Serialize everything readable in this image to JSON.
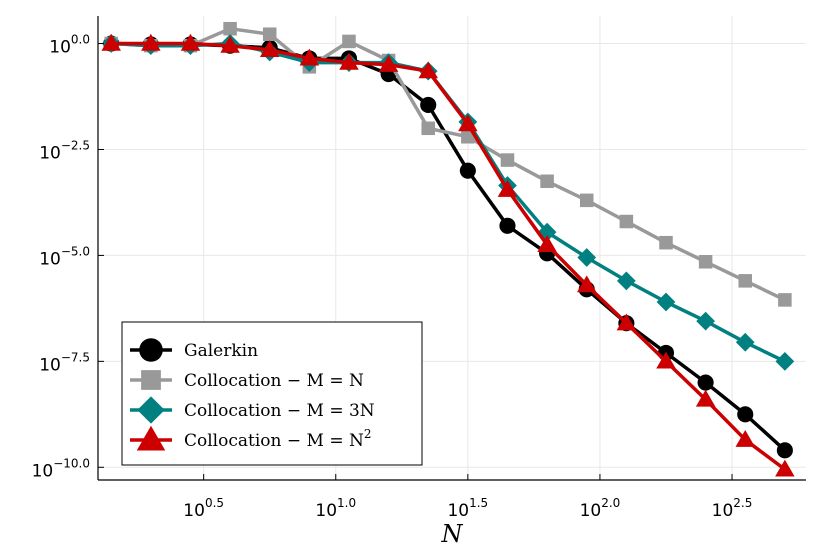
{
  "chart_data": {
    "type": "line",
    "x_scale": "log10",
    "y_scale": "log10",
    "xlabel": "N",
    "ylabel": "",
    "xlim_log10": [
      0.1,
      2.78
    ],
    "ylim_log10": [
      -10.3,
      0.65
    ],
    "x_ticks": [
      {
        "log": 0.5,
        "base": "10",
        "exp": "0.5"
      },
      {
        "log": 1.0,
        "base": "10",
        "exp": "1.0"
      },
      {
        "log": 1.5,
        "base": "10",
        "exp": "1.5"
      },
      {
        "log": 2.0,
        "base": "10",
        "exp": "2.0"
      },
      {
        "log": 2.5,
        "base": "10",
        "exp": "2.5"
      }
    ],
    "y_ticks": [
      {
        "log": 0.0,
        "base": "10",
        "exp": "0.0"
      },
      {
        "log": -2.5,
        "base": "10",
        "exp": "−2.5"
      },
      {
        "log": -5.0,
        "base": "10",
        "exp": "−5.0"
      },
      {
        "log": -7.5,
        "base": "10",
        "exp": "−7.5"
      },
      {
        "log": -10.0,
        "base": "10",
        "exp": "−10.0"
      }
    ],
    "grid": true,
    "legend_position": "bottom-left",
    "x_log10": [
      0.15,
      0.3,
      0.45,
      0.6,
      0.75,
      0.9,
      1.05,
      1.2,
      1.35,
      1.5,
      1.65,
      1.8,
      1.95,
      2.1,
      2.25,
      2.4,
      2.55,
      2.7
    ],
    "series": [
      {
        "name": "Galerkin",
        "legend_main": "Galerkin",
        "legend_sup": "",
        "color": "#000000",
        "marker": "circle",
        "y_log10": [
          0.0,
          -0.02,
          -0.02,
          -0.05,
          -0.1,
          -0.35,
          -0.35,
          -0.72,
          -1.45,
          -3.0,
          -4.3,
          -4.95,
          -5.8,
          -6.6,
          -7.3,
          -8.0,
          -8.75,
          -9.6
        ]
      },
      {
        "name": "Collocation − M = N",
        "legend_main": "Collocation − M = N",
        "legend_sup": "",
        "color": "#999999",
        "marker": "square",
        "y_log10": [
          0.0,
          -0.05,
          -0.05,
          0.35,
          0.22,
          -0.55,
          0.05,
          -0.4,
          -2.0,
          -2.2,
          -2.75,
          -3.25,
          -3.7,
          -4.2,
          -4.7,
          -5.15,
          -5.6,
          -6.05
        ]
      },
      {
        "name": "Collocation − M = 3N",
        "legend_main": "Collocation − M = 3N",
        "legend_sup": "",
        "color": "#008080",
        "marker": "diamond",
        "y_log10": [
          0.0,
          -0.05,
          -0.05,
          0.0,
          -0.2,
          -0.45,
          -0.45,
          -0.45,
          -0.65,
          -1.85,
          -3.35,
          -4.45,
          -5.05,
          -5.6,
          -6.1,
          -6.55,
          -7.05,
          -7.5
        ]
      },
      {
        "name": "Collocation − M = N2",
        "legend_main": "Collocation − M = N",
        "legend_sup": "2",
        "color": "#cc0000",
        "marker": "triangle",
        "y_log10": [
          0.0,
          0.0,
          0.0,
          -0.05,
          -0.15,
          -0.35,
          -0.45,
          -0.5,
          -0.65,
          -1.9,
          -3.45,
          -4.75,
          -5.7,
          -6.6,
          -7.5,
          -8.4,
          -9.35,
          -10.05
        ]
      }
    ]
  }
}
